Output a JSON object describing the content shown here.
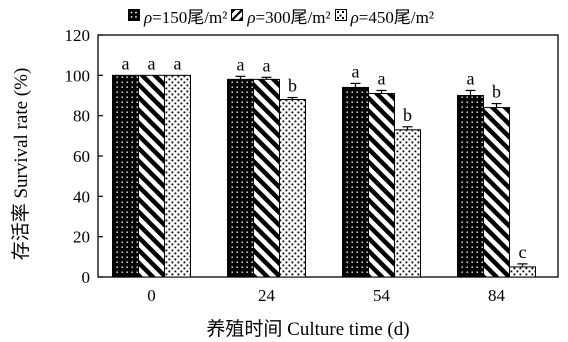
{
  "chart_data": {
    "type": "bar",
    "categories": [
      "0",
      "24",
      "54",
      "84"
    ],
    "series": [
      {
        "name": "ρ=150尾/m²",
        "pattern": "dots-on-black",
        "values": [
          100,
          98,
          94,
          90
        ],
        "errors": [
          0,
          1.5,
          2,
          2.5
        ],
        "labels": [
          "a",
          "a",
          "a",
          "a"
        ]
      },
      {
        "name": "ρ=300尾/m²",
        "pattern": "diagonal-stripes",
        "values": [
          100,
          98,
          91,
          84
        ],
        "errors": [
          0,
          1,
          1.5,
          2
        ],
        "labels": [
          "a",
          "a",
          "a",
          "b"
        ]
      },
      {
        "name": "ρ=450尾/m²",
        "pattern": "dotted",
        "values": [
          100,
          88,
          73,
          5
        ],
        "errors": [
          0,
          1,
          1.5,
          1.5
        ],
        "labels": [
          "a",
          "b",
          "b",
          "c"
        ]
      }
    ],
    "xlabel": "养殖时间 Culture time (d)",
    "ylabel": "存活率 Survival rate (%)",
    "ylim": [
      0,
      120
    ],
    "yticks": [
      0,
      20,
      40,
      60,
      80,
      100,
      120
    ],
    "grid": false,
    "legend_position": "top"
  },
  "legend": {
    "items": [
      {
        "rho": "ρ",
        "text": "=150尾/m²"
      },
      {
        "rho": "ρ",
        "text": "=300尾/m²"
      },
      {
        "rho": "ρ",
        "text": "=450尾/m²"
      }
    ]
  }
}
